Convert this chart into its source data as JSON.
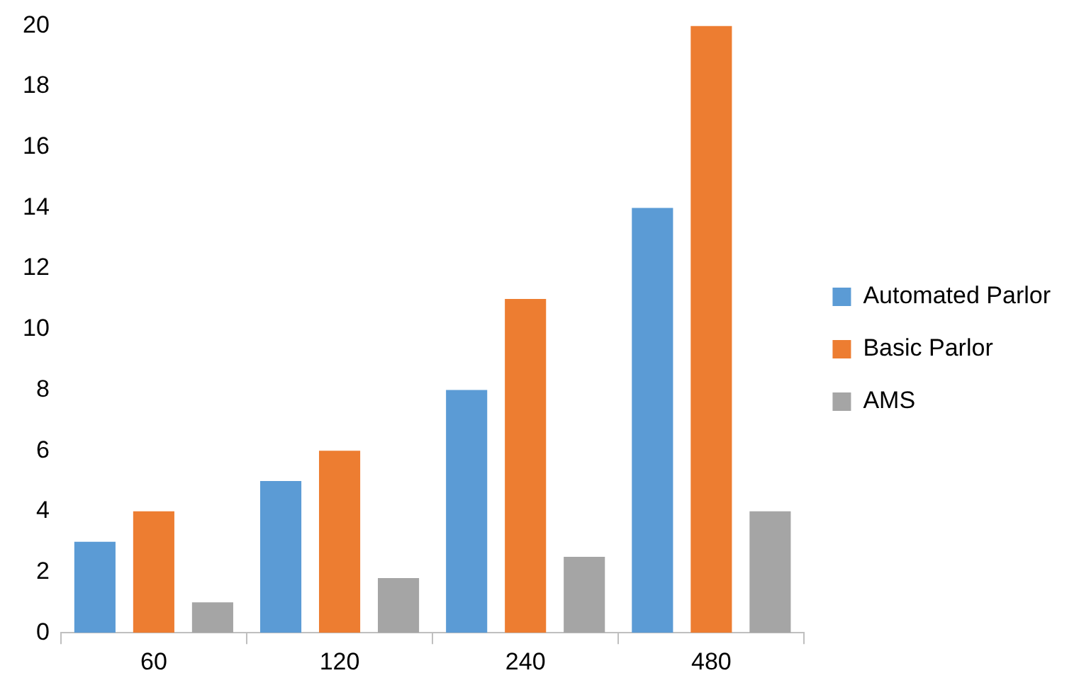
{
  "chart_data": {
    "type": "bar",
    "categories": [
      "60",
      "120",
      "240",
      "480"
    ],
    "series": [
      {
        "name": "Automated Parlor",
        "color": "#5b9bd5",
        "values": [
          3,
          5,
          8,
          14
        ]
      },
      {
        "name": "Basic Parlor",
        "color": "#ed7d31",
        "values": [
          4,
          6,
          11,
          20
        ]
      },
      {
        "name": "AMS",
        "color": "#a5a5a5",
        "values": [
          1,
          1.8,
          2.5,
          4
        ]
      }
    ],
    "ylim": [
      0,
      20
    ],
    "yticks": [
      0,
      2,
      4,
      6,
      8,
      10,
      12,
      14,
      16,
      18,
      20
    ],
    "grid": false,
    "legend": "right"
  }
}
